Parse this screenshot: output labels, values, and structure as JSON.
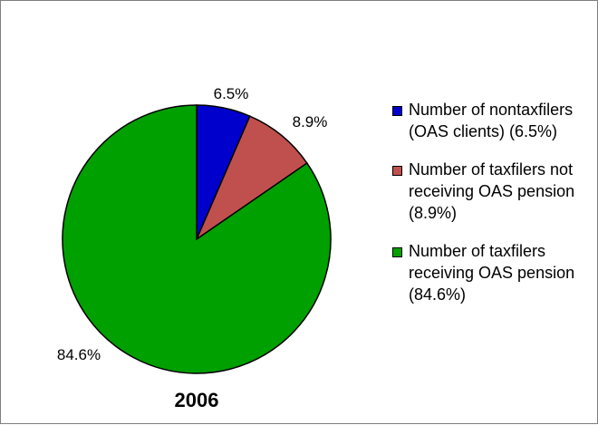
{
  "chart_data": {
    "type": "pie",
    "title": "2006",
    "slices": [
      {
        "label": "Number of nontaxfilers (OAS clients) (6.5%)",
        "value": 6.5,
        "data_label": "6.5%",
        "color": "#0000CC"
      },
      {
        "label": "Number of taxfilers not receiving OAS pension (8.9%)",
        "value": 8.9,
        "data_label": "8.9%",
        "color": "#C0504D"
      },
      {
        "label": "Number of taxfilers receiving OAS pension (84.6%)",
        "value": 84.6,
        "data_label": "84.6%",
        "color": "#00A000"
      }
    ],
    "legend_position": "right",
    "start_angle": "12 o'clock",
    "direction": "clockwise"
  }
}
